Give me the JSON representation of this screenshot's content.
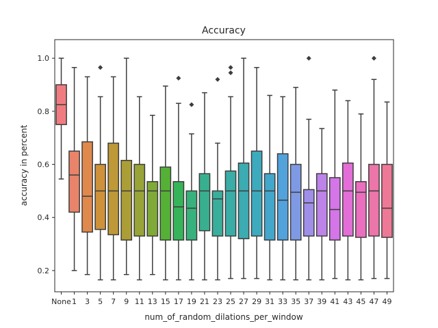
{
  "chart_data": {
    "type": "box",
    "title": "Accuracy",
    "xlabel": "num_of_random_dilations_per_window",
    "ylabel": "accuracy in percent",
    "ylim": [
      0.12,
      1.07
    ],
    "yticks": [
      0.2,
      0.4,
      0.6,
      0.8,
      1.0
    ],
    "ytick_labels": [
      "0.2",
      "0.4",
      "0.6",
      "0.8",
      "1.0"
    ],
    "grid": false,
    "legend": "none",
    "categories": [
      "None",
      "1",
      "3",
      "5",
      "7",
      "9",
      "11",
      "13",
      "15",
      "17",
      "19",
      "21",
      "23",
      "25",
      "27",
      "29",
      "31",
      "33",
      "35",
      "37",
      "39",
      "41",
      "43",
      "45",
      "47",
      "49"
    ],
    "colors": [
      "#f07c82",
      "#e9846a",
      "#e0894c",
      "#cf913a",
      "#bf9838",
      "#ab9e37",
      "#98a437",
      "#80aa37",
      "#55b136",
      "#36b459",
      "#37b27c",
      "#38b08f",
      "#39ae9b",
      "#3aada7",
      "#3cabb2",
      "#3eaabe",
      "#43a7cc",
      "#52a2dc",
      "#7f9ae4",
      "#a08fe9",
      "#bd83e9",
      "#d476e8",
      "#e46ed8",
      "#ea70bf",
      "#ec75a9",
      "#ee7996"
    ],
    "boxes": [
      {
        "whislo": 0.545,
        "q1": 0.75,
        "med": 0.825,
        "q3": 0.9,
        "whishi": 1.0,
        "fliers": []
      },
      {
        "whislo": 0.2,
        "q1": 0.42,
        "med": 0.56,
        "q3": 0.65,
        "whishi": 0.965,
        "fliers": []
      },
      {
        "whislo": 0.185,
        "q1": 0.345,
        "med": 0.48,
        "q3": 0.685,
        "whishi": 0.93,
        "fliers": []
      },
      {
        "whislo": 0.165,
        "q1": 0.355,
        "med": 0.5,
        "q3": 0.6,
        "whishi": 0.855,
        "fliers": [
          0.965
        ]
      },
      {
        "whislo": 0.165,
        "q1": 0.335,
        "med": 0.5,
        "q3": 0.68,
        "whishi": 0.93,
        "fliers": []
      },
      {
        "whislo": 0.185,
        "q1": 0.315,
        "med": 0.5,
        "q3": 0.615,
        "whishi": 1.0,
        "fliers": []
      },
      {
        "whislo": 0.165,
        "q1": 0.33,
        "med": 0.5,
        "q3": 0.6,
        "whishi": 0.855,
        "fliers": []
      },
      {
        "whislo": 0.185,
        "q1": 0.33,
        "med": 0.5,
        "q3": 0.535,
        "whishi": 0.785,
        "fliers": []
      },
      {
        "whislo": 0.165,
        "q1": 0.315,
        "med": 0.5,
        "q3": 0.59,
        "whishi": 0.895,
        "fliers": []
      },
      {
        "whislo": 0.165,
        "q1": 0.315,
        "med": 0.44,
        "q3": 0.535,
        "whishi": 0.83,
        "fliers": [
          0.925
        ]
      },
      {
        "whislo": 0.165,
        "q1": 0.315,
        "med": 0.435,
        "q3": 0.5,
        "whishi": 0.715,
        "fliers": [
          0.825
        ]
      },
      {
        "whislo": 0.165,
        "q1": 0.35,
        "med": 0.5,
        "q3": 0.565,
        "whishi": 0.87,
        "fliers": []
      },
      {
        "whislo": 0.165,
        "q1": 0.33,
        "med": 0.47,
        "q3": 0.5,
        "whishi": 0.68,
        "fliers": [
          0.92
        ]
      },
      {
        "whislo": 0.17,
        "q1": 0.33,
        "med": 0.5,
        "q3": 0.575,
        "whishi": 0.855,
        "fliers": [
          0.945,
          0.965
        ]
      },
      {
        "whislo": 0.17,
        "q1": 0.32,
        "med": 0.5,
        "q3": 0.605,
        "whishi": 1.0,
        "fliers": []
      },
      {
        "whislo": 0.17,
        "q1": 0.33,
        "med": 0.5,
        "q3": 0.65,
        "whishi": 0.965,
        "fliers": []
      },
      {
        "whislo": 0.165,
        "q1": 0.315,
        "med": 0.5,
        "q3": 0.565,
        "whishi": 0.86,
        "fliers": []
      },
      {
        "whislo": 0.165,
        "q1": 0.315,
        "med": 0.465,
        "q3": 0.64,
        "whishi": 0.855,
        "fliers": []
      },
      {
        "whislo": 0.165,
        "q1": 0.315,
        "med": 0.495,
        "q3": 0.6,
        "whishi": 0.89,
        "fliers": []
      },
      {
        "whislo": 0.165,
        "q1": 0.33,
        "med": 0.455,
        "q3": 0.505,
        "whishi": 0.77,
        "fliers": [
          1.0
        ]
      },
      {
        "whislo": 0.165,
        "q1": 0.33,
        "med": 0.5,
        "q3": 0.565,
        "whishi": 0.735,
        "fliers": []
      },
      {
        "whislo": 0.17,
        "q1": 0.315,
        "med": 0.43,
        "q3": 0.55,
        "whishi": 0.88,
        "fliers": []
      },
      {
        "whislo": 0.165,
        "q1": 0.33,
        "med": 0.5,
        "q3": 0.605,
        "whishi": 0.84,
        "fliers": []
      },
      {
        "whislo": 0.165,
        "q1": 0.325,
        "med": 0.495,
        "q3": 0.535,
        "whishi": 0.79,
        "fliers": []
      },
      {
        "whislo": 0.17,
        "q1": 0.33,
        "med": 0.5,
        "q3": 0.6,
        "whishi": 0.92,
        "fliers": [
          1.0
        ]
      },
      {
        "whislo": 0.17,
        "q1": 0.325,
        "med": 0.435,
        "q3": 0.6,
        "whishi": 0.835,
        "fliers": []
      }
    ]
  }
}
